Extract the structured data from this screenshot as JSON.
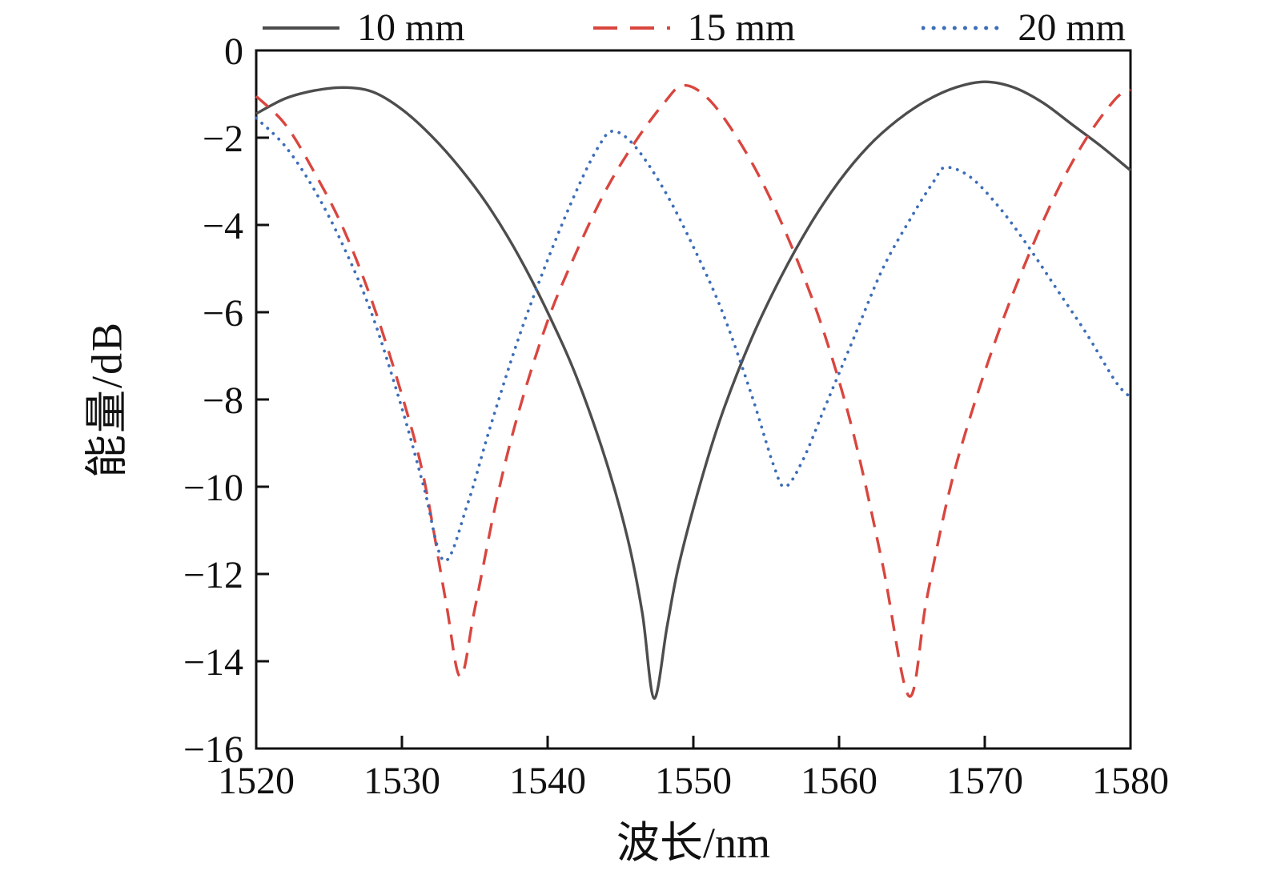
{
  "chart_data": {
    "type": "line",
    "title": "",
    "xlabel": "波长/nm",
    "ylabel": "能量/dB",
    "xlim": [
      1520,
      1580
    ],
    "ylim": [
      -16,
      0
    ],
    "x_ticks": [
      1520,
      1530,
      1540,
      1550,
      1560,
      1570,
      1580
    ],
    "y_ticks": [
      0,
      -2,
      -4,
      -6,
      -8,
      -10,
      -12,
      -14,
      -16
    ],
    "grid": false,
    "legend_position": "top",
    "axis_color": "#111111",
    "series": [
      {
        "name": "10 mm",
        "color": "#4d4d4d",
        "style": "solid",
        "points": [
          [
            1520,
            -1.45
          ],
          [
            1522,
            -1.1
          ],
          [
            1524,
            -0.92
          ],
          [
            1526,
            -0.85
          ],
          [
            1528,
            -0.95
          ],
          [
            1530,
            -1.35
          ],
          [
            1532,
            -1.95
          ],
          [
            1534,
            -2.7
          ],
          [
            1536,
            -3.6
          ],
          [
            1538,
            -4.7
          ],
          [
            1540,
            -6.0
          ],
          [
            1542,
            -7.5
          ],
          [
            1544,
            -9.4
          ],
          [
            1545.5,
            -11.2
          ],
          [
            1546.5,
            -12.9
          ],
          [
            1547.3,
            -14.85
          ],
          [
            1548.2,
            -13.2
          ],
          [
            1549,
            -11.8
          ],
          [
            1550.5,
            -9.9
          ],
          [
            1552,
            -8.3
          ],
          [
            1554,
            -6.6
          ],
          [
            1556,
            -5.2
          ],
          [
            1558,
            -4.0
          ],
          [
            1560,
            -3.0
          ],
          [
            1562,
            -2.2
          ],
          [
            1564,
            -1.6
          ],
          [
            1566,
            -1.15
          ],
          [
            1568,
            -0.85
          ],
          [
            1570,
            -0.72
          ],
          [
            1572,
            -0.85
          ],
          [
            1574,
            -1.2
          ],
          [
            1576,
            -1.7
          ],
          [
            1578,
            -2.2
          ],
          [
            1580,
            -2.75
          ]
        ]
      },
      {
        "name": "15 mm",
        "color": "#d9463f",
        "style": "dashed",
        "points": [
          [
            1520,
            -1.05
          ],
          [
            1522,
            -1.7
          ],
          [
            1524,
            -2.8
          ],
          [
            1526,
            -4.1
          ],
          [
            1528,
            -5.8
          ],
          [
            1530,
            -7.9
          ],
          [
            1531.5,
            -9.8
          ],
          [
            1533,
            -12.6
          ],
          [
            1534,
            -14.35
          ],
          [
            1535,
            -12.8
          ],
          [
            1536.5,
            -10.3
          ],
          [
            1538,
            -8.3
          ],
          [
            1540,
            -6.2
          ],
          [
            1542,
            -4.6
          ],
          [
            1544,
            -3.2
          ],
          [
            1546,
            -2.1
          ],
          [
            1548,
            -1.2
          ],
          [
            1549.3,
            -0.8
          ],
          [
            1551,
            -1.1
          ],
          [
            1553,
            -2.0
          ],
          [
            1555,
            -3.2
          ],
          [
            1557,
            -4.7
          ],
          [
            1559,
            -6.5
          ],
          [
            1561,
            -8.8
          ],
          [
            1563,
            -11.8
          ],
          [
            1564.8,
            -14.8
          ],
          [
            1566,
            -12.6
          ],
          [
            1567.5,
            -10.2
          ],
          [
            1569,
            -8.4
          ],
          [
            1571,
            -6.4
          ],
          [
            1573,
            -4.7
          ],
          [
            1575,
            -3.2
          ],
          [
            1577,
            -2.0
          ],
          [
            1579,
            -1.1
          ],
          [
            1580,
            -0.9
          ]
        ]
      },
      {
        "name": "20 mm",
        "color": "#3c6db8",
        "style": "dotted",
        "points": [
          [
            1520,
            -1.55
          ],
          [
            1522,
            -2.2
          ],
          [
            1524,
            -3.2
          ],
          [
            1526,
            -4.5
          ],
          [
            1528,
            -6.1
          ],
          [
            1530,
            -8.2
          ],
          [
            1531.5,
            -10.0
          ],
          [
            1532.9,
            -11.7
          ],
          [
            1534.5,
            -10.4
          ],
          [
            1536,
            -8.7
          ],
          [
            1538,
            -6.6
          ],
          [
            1540,
            -4.8
          ],
          [
            1542,
            -3.2
          ],
          [
            1543.5,
            -2.2
          ],
          [
            1544.5,
            -1.85
          ],
          [
            1546,
            -2.2
          ],
          [
            1548,
            -3.2
          ],
          [
            1550,
            -4.5
          ],
          [
            1552,
            -6.0
          ],
          [
            1554,
            -7.9
          ],
          [
            1555.5,
            -9.5
          ],
          [
            1556.3,
            -10.0
          ],
          [
            1557.5,
            -9.4
          ],
          [
            1559,
            -8.2
          ],
          [
            1561,
            -6.6
          ],
          [
            1563,
            -5.0
          ],
          [
            1565,
            -3.8
          ],
          [
            1566.5,
            -3.0
          ],
          [
            1567.3,
            -2.68
          ],
          [
            1569,
            -2.9
          ],
          [
            1571,
            -3.6
          ],
          [
            1573,
            -4.5
          ],
          [
            1575,
            -5.5
          ],
          [
            1577,
            -6.5
          ],
          [
            1579,
            -7.6
          ],
          [
            1580,
            -7.95
          ]
        ]
      }
    ]
  }
}
